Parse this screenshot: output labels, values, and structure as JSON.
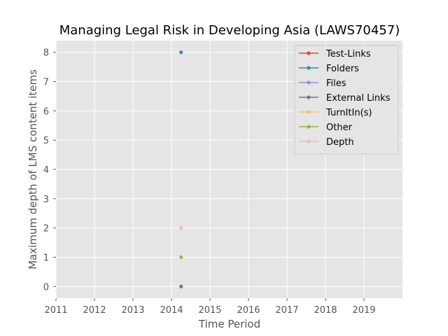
{
  "chart_data": {
    "type": "line",
    "title": "Managing Legal Risk in Developing Asia (LAWS70457)",
    "xlabel": "Time Period",
    "ylabel": "Maximum depth of LMS content items",
    "xlim": [
      2011,
      2020
    ],
    "ylim": [
      -0.4,
      8.4
    ],
    "x_ticks": [
      "2011",
      "2012",
      "2013",
      "2014",
      "2015",
      "2016",
      "2017",
      "2018",
      "2019"
    ],
    "y_ticks": [
      "0",
      "1",
      "2",
      "3",
      "4",
      "5",
      "6",
      "7",
      "8"
    ],
    "grid": true,
    "legend_position": "top-right",
    "series": [
      {
        "name": "Test-Links",
        "color": "#E24A33",
        "points": []
      },
      {
        "name": "Folders",
        "color": "#348ABD",
        "points": [
          {
            "x": 2014.25,
            "y": 8
          }
        ]
      },
      {
        "name": "Files",
        "color": "#988ED5",
        "points": []
      },
      {
        "name": "External Links",
        "color": "#777777",
        "points": [
          {
            "x": 2014.25,
            "y": 0
          }
        ]
      },
      {
        "name": "TurnItIn(s)",
        "color": "#FBC15E",
        "points": []
      },
      {
        "name": "Other",
        "color": "#8EBA42",
        "points": [
          {
            "x": 2014.25,
            "y": 1
          }
        ]
      },
      {
        "name": "Depth",
        "color": "#FFB5B8",
        "points": [
          {
            "x": 2014.25,
            "y": 2
          }
        ]
      }
    ]
  }
}
